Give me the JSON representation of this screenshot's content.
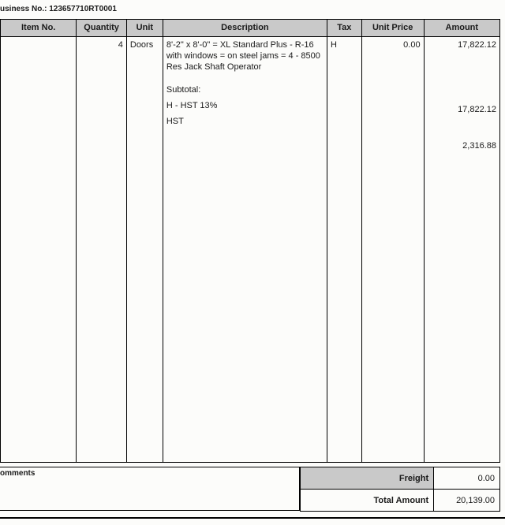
{
  "header": {
    "business_no_label": "usiness No.:",
    "business_no_value": "123657710RT0001"
  },
  "table": {
    "columns": {
      "item_no": "Item No.",
      "quantity": "Quantity",
      "unit": "Unit",
      "description": "Description",
      "tax": "Tax",
      "unit_price": "Unit Price",
      "amount": "Amount"
    },
    "row": {
      "item_no": "",
      "quantity": "4",
      "unit": "Doors",
      "desc_main": "8'-2\" x 8'-0\" = XL Standard Plus - R-16 with windows = on steel jams = 4 - 8500 Res Jack Shaft Operator",
      "desc_subtotal": "Subtotal:",
      "desc_h_hst": "H - HST 13%",
      "desc_hst": "HST",
      "tax": "H",
      "unit_price": "0.00",
      "amount_main": "17,822.12",
      "amount_subtotal": "17,822.12",
      "amount_hst": "2,316.88"
    }
  },
  "footer": {
    "comments_label": "omments",
    "freight_label": "Freight",
    "freight_value": "0.00",
    "total_label": "Total Amount",
    "total_value": "20,139.00"
  }
}
